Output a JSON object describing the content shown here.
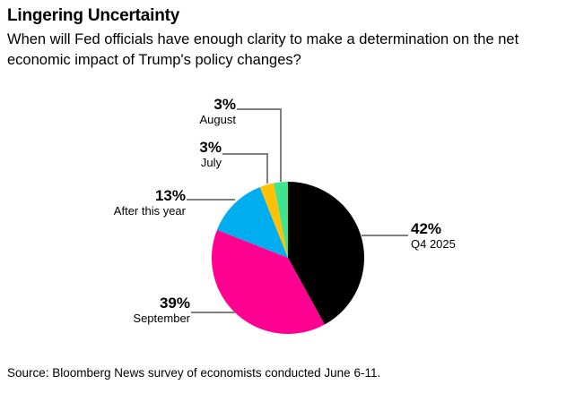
{
  "header": {
    "title": "Lingering Uncertainty",
    "subtitle": "When will Fed officials have enough clarity to make a determination on the net economic impact of Trump's policy changes?"
  },
  "chart_data": {
    "type": "pie",
    "title": "Lingering Uncertainty",
    "unit": "percent",
    "start_angle_deg": 0,
    "direction": "clockwise",
    "total": 100,
    "slices": [
      {
        "label": "Q4 2025",
        "value": 42,
        "pct_label": "42%",
        "color": "#000000"
      },
      {
        "label": "September",
        "value": 39,
        "pct_label": "39%",
        "color": "#ff0090"
      },
      {
        "label": "After this year",
        "value": 13,
        "pct_label": "13%",
        "color": "#00aef0"
      },
      {
        "label": "July",
        "value": 3,
        "pct_label": "3%",
        "color": "#ffc105"
      },
      {
        "label": "August",
        "value": 3,
        "pct_label": "3%",
        "color": "#3ee58c"
      }
    ],
    "leader_line_color": "#808080",
    "legend": "none",
    "label_style": "callout-leader-lines"
  },
  "footer": {
    "source": "Source: Bloomberg News survey of economists conducted June 6-11."
  }
}
